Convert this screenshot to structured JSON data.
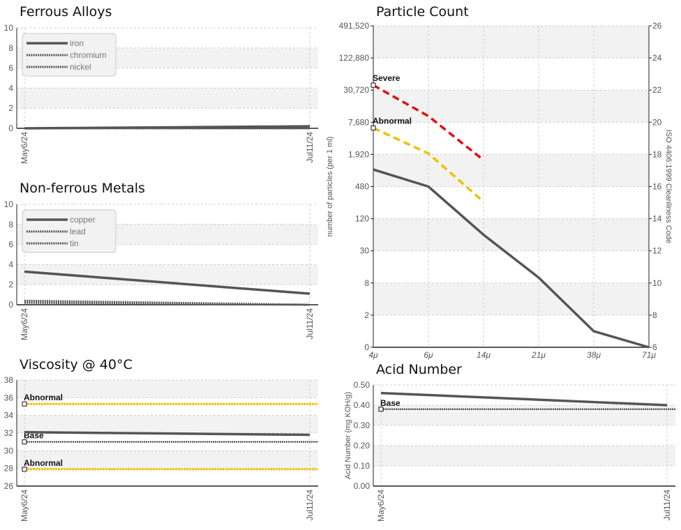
{
  "colors": {
    "axis": "#222222",
    "series": "#555555",
    "severe": "#e01010",
    "abnormal": "#f0c000",
    "base": "#333333",
    "band": "#f2f2f2",
    "grid": "#cccccc"
  },
  "chart_data": [
    {
      "id": "ferrous",
      "type": "line",
      "title": "Ferrous Alloys",
      "x": [
        "May6/24",
        "Jul11/24"
      ],
      "ylim": [
        0,
        10
      ],
      "yticks": [
        0,
        2,
        4,
        6,
        8,
        10
      ],
      "series": [
        {
          "name": "iron",
          "values": [
            0,
            0.2
          ],
          "style": "solid"
        },
        {
          "name": "chromium",
          "values": [
            0,
            0
          ],
          "style": "dotted"
        },
        {
          "name": "nickel",
          "values": [
            0,
            0
          ],
          "style": "dotted"
        }
      ],
      "legend": "top-left"
    },
    {
      "id": "nonferrous",
      "type": "line",
      "title": "Non-ferrous Metals",
      "x": [
        "May6/24",
        "Jul11/24"
      ],
      "ylim": [
        0,
        10
      ],
      "yticks": [
        0,
        2,
        4,
        6,
        8,
        10
      ],
      "series": [
        {
          "name": "copper",
          "values": [
            3.3,
            1.1
          ],
          "style": "solid"
        },
        {
          "name": "lead",
          "values": [
            0.4,
            0
          ],
          "style": "dotted"
        },
        {
          "name": "tin",
          "values": [
            0.2,
            0
          ],
          "style": "dotted"
        }
      ],
      "legend": "top-left"
    },
    {
      "id": "viscosity",
      "type": "line",
      "title": "Viscosity @ 40°C",
      "x": [
        "May6/24",
        "Jul11/24"
      ],
      "ylim": [
        26,
        38
      ],
      "yticks": [
        26,
        28,
        30,
        32,
        34,
        36,
        38
      ],
      "series": [
        {
          "values": [
            32.1,
            31.8
          ],
          "style": "solid"
        }
      ],
      "thresholds": [
        {
          "label": "Abnormal",
          "value": 35.3,
          "kind": "abnormal"
        },
        {
          "label": "Base",
          "value": 31,
          "kind": "base"
        },
        {
          "label": "Abnormal",
          "value": 27.9,
          "kind": "abnormal"
        }
      ]
    },
    {
      "id": "particle",
      "type": "line",
      "title": "Particle Count",
      "ylabel": "number of particles (per 1 ml)",
      "y2label": "ISO 4406:1999 Cleanliness Code",
      "categories": [
        "4μ",
        "6μ",
        "14μ",
        "21μ",
        "38μ",
        "71μ"
      ],
      "yscale": "log2",
      "ylim": [
        0,
        491520
      ],
      "yticks": [
        "0",
        "2",
        "8",
        "30",
        "120",
        "480",
        "1,920",
        "7,680",
        "30,720",
        "122,880",
        "491,520"
      ],
      "y2ticks": [
        6,
        8,
        10,
        12,
        14,
        16,
        18,
        20,
        22,
        24,
        26
      ],
      "series": [
        {
          "values": [
            1000,
            480,
            60,
            10,
            1,
            0
          ],
          "style": "solid"
        }
      ],
      "limits": [
        {
          "label": "Severe",
          "kind": "severe",
          "values": [
            38000,
            10000,
            1500
          ]
        },
        {
          "label": "Abnormal",
          "kind": "abnormal",
          "values": [
            6000,
            2000,
            250
          ]
        }
      ]
    },
    {
      "id": "acid",
      "type": "line",
      "title": "Acid Number",
      "ylabel": "Acid Number (mg KOH/g)",
      "x": [
        "May6/24",
        "Jul11/24"
      ],
      "ylim": [
        0,
        0.5
      ],
      "yticks": [
        "0.00",
        "0.10",
        "0.20",
        "0.30",
        "0.40",
        "0.50"
      ],
      "series": [
        {
          "values": [
            0.46,
            0.4
          ],
          "style": "solid"
        }
      ],
      "thresholds": [
        {
          "label": "Base",
          "value": 0.38,
          "kind": "base"
        }
      ]
    }
  ]
}
